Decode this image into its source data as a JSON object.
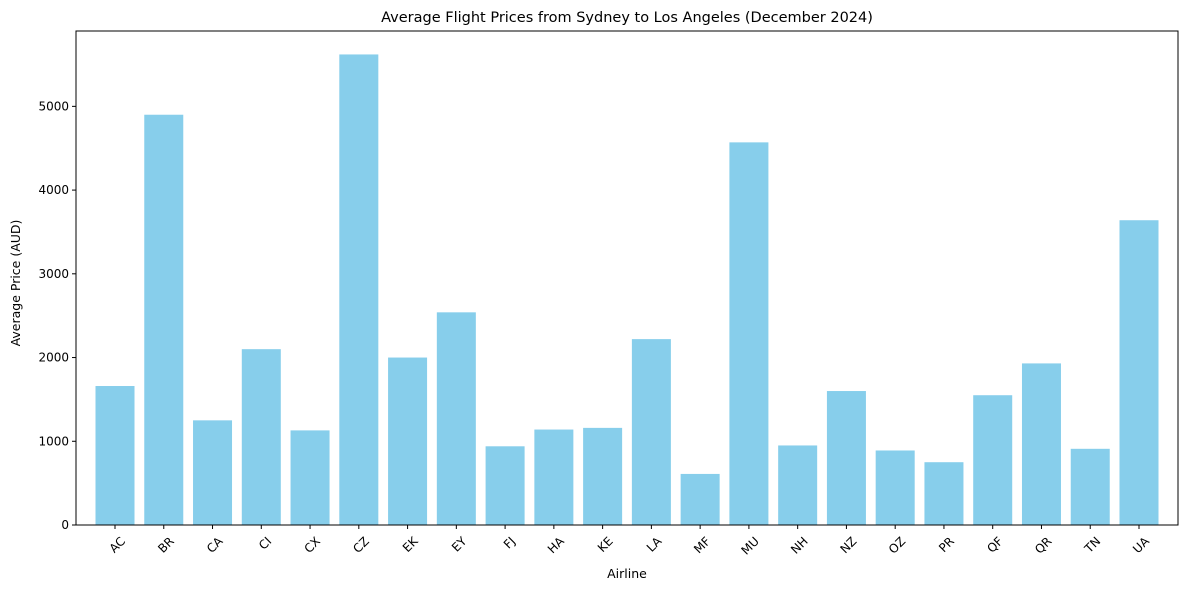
{
  "chart_data": {
    "type": "bar",
    "title": "Average Flight Prices from Sydney to Los Angeles (December 2024)",
    "xlabel": "Airline",
    "ylabel": "Average Price (AUD)",
    "categories": [
      "AC",
      "BR",
      "CA",
      "CI",
      "CX",
      "CZ",
      "EK",
      "EY",
      "FJ",
      "HA",
      "KE",
      "LA",
      "MF",
      "MU",
      "NH",
      "NZ",
      "OZ",
      "PR",
      "QF",
      "QR",
      "TN",
      "UA"
    ],
    "values": [
      1660,
      4900,
      1250,
      2100,
      1130,
      5620,
      2000,
      2540,
      940,
      1140,
      1160,
      2220,
      610,
      4570,
      950,
      1600,
      890,
      750,
      1550,
      1930,
      910,
      3640
    ],
    "ylim": [
      0,
      5900
    ],
    "yticks": [
      0,
      1000,
      2000,
      3000,
      4000,
      5000
    ],
    "bar_color": "#87ceeb",
    "grid": false,
    "legend": "none"
  }
}
